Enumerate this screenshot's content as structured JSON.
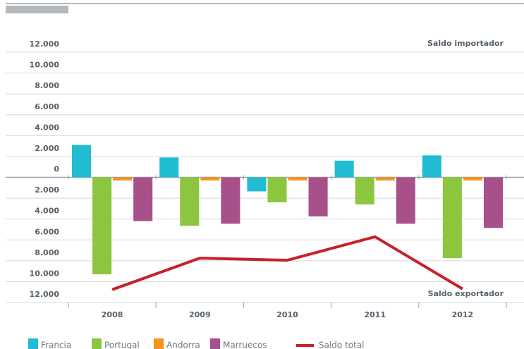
{
  "chart_data": {
    "type": "bar",
    "annotations": [
      "Saldo importador",
      "Saldo exportador"
    ],
    "categories": [
      "2008",
      "2009",
      "2010",
      "2011",
      "2012"
    ],
    "series": [
      {
        "name": "Francia",
        "color": "#1fbcd2",
        "values": [
          3100,
          1900,
          -1350,
          1600,
          2100
        ]
      },
      {
        "name": "Portugal",
        "color": "#8cc63f",
        "values": [
          -9300,
          -4650,
          -2400,
          -2600,
          -7750
        ]
      },
      {
        "name": "Andorra",
        "color": "#f7941d",
        "values": [
          -300,
          -300,
          -300,
          -300,
          -300
        ]
      },
      {
        "name": "Marruecos",
        "color": "#a8508a",
        "values": [
          -4200,
          -4450,
          -3750,
          -4450,
          -4850
        ]
      },
      {
        "name": "Saldo total",
        "color": "#c8202a",
        "type": "line",
        "values": [
          -10770,
          -7750,
          -7950,
          -5700,
          -10700
        ]
      }
    ],
    "ylim": [
      -12000,
      12000
    ],
    "yticks": [
      {
        "value": 12000,
        "label": "12.000"
      },
      {
        "value": 10000,
        "label": "10.000"
      },
      {
        "value": 8000,
        "label": "8.000"
      },
      {
        "value": 6000,
        "label": "6.000"
      },
      {
        "value": 4000,
        "label": "4.000"
      },
      {
        "value": 2000,
        "label": "2.000"
      },
      0,
      {
        "value": -2000,
        "label": "2.000"
      },
      {
        "value": -4000,
        "label": "4.000"
      },
      {
        "value": -6000,
        "label": "6.000"
      },
      {
        "value": -8000,
        "label": "8.000"
      },
      {
        "value": -10000,
        "label": "10.000"
      },
      {
        "value": -12000,
        "label": "12.000"
      }
    ],
    "grid": true
  }
}
